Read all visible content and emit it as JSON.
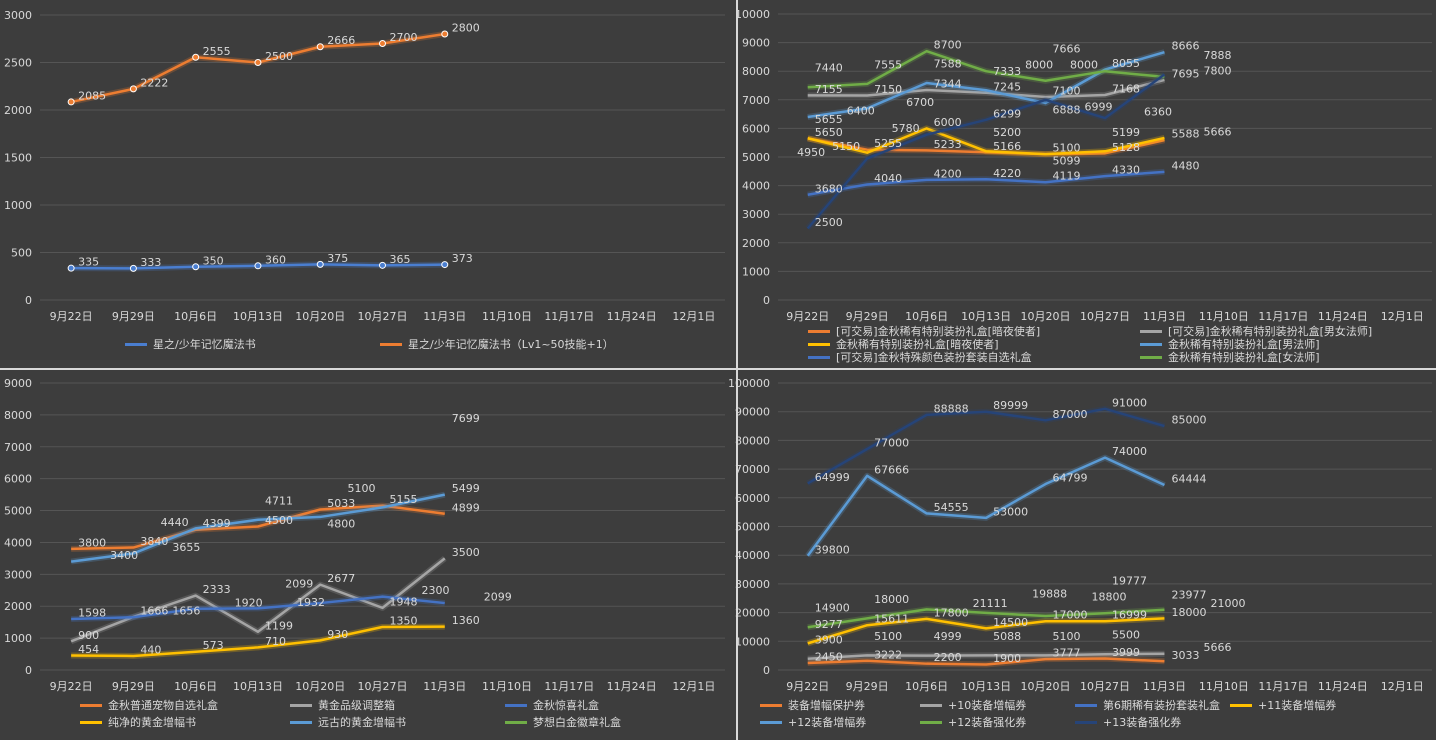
{
  "categories": [
    "9月22日",
    "9月29日",
    "10月6日",
    "10月13日",
    "10月20日",
    "10月27日",
    "11月3日",
    "11月10日",
    "11月17日",
    "11月24日",
    "12月1日"
  ],
  "chart_data": [
    {
      "type": "line",
      "title": "",
      "ylim": [
        0,
        3000
      ],
      "ystep": 500,
      "grid": true,
      "legend": "bottom",
      "markers": true,
      "series": [
        {
          "name": "星之/少年记忆魔法书",
          "color": "#4a7ed0",
          "values": [
            335,
            333,
            350,
            360,
            375,
            365,
            373
          ]
        },
        {
          "name": "星之/少年记忆魔法书（Lv1~50技能+1）",
          "color": "#ed7d31",
          "values": [
            2085,
            2222,
            2555,
            2500,
            2666,
            2700,
            2800
          ]
        }
      ]
    },
    {
      "type": "line",
      "title": "",
      "ylim": [
        0,
        10000
      ],
      "ystep": 1000,
      "grid": true,
      "legend": "bottom",
      "markers": false,
      "series": [
        {
          "name": "[可交易]金秋稀有特别装扮礼盒[暗夜使者]",
          "color": "#ed7d31",
          "values": [
            5650,
            5255,
            5233,
            5166,
            5100,
            5128,
            5588
          ]
        },
        {
          "name": "[可交易]金秋稀有特别装扮礼盒[男女法师]",
          "color": "#a5a5a5",
          "values": [
            7155,
            7150,
            7344,
            7245,
            7100,
            7168,
            7695
          ]
        },
        {
          "name": "金秋稀有特别装扮礼盒[暗夜使者]",
          "color": "#ffc000",
          "values": [
            5655,
            5150,
            6000,
            5200,
            5099,
            5199,
            5666
          ]
        },
        {
          "name": "金秋稀有特别装扮礼盒[男法师]",
          "color": "#5b9bd5",
          "values": [
            6400,
            6700,
            7588,
            7333,
            6888,
            8055,
            8666
          ]
        },
        {
          "name": "[可交易]金秋特殊颜色装扮套装自选礼盒",
          "color": "#4472c4",
          "values": [
            3680,
            4040,
            4200,
            4220,
            4119,
            4330,
            4480
          ]
        },
        {
          "name": "金秋稀有特别装扮礼盒[女法师]",
          "color": "#70ad47",
          "values": [
            7440,
            7555,
            8700,
            8000,
            7666,
            8000,
            7800
          ]
        },
        {
          "name": "",
          "color": "#264478",
          "values": [
            2500,
            4950,
            5780,
            6299,
            6999,
            6360,
            7888
          ]
        }
      ]
    },
    {
      "type": "line",
      "title": "",
      "ylim": [
        0,
        9000
      ],
      "ystep": 1000,
      "grid": true,
      "legend": "bottom",
      "markers": false,
      "series": [
        {
          "name": "金秋普通宠物自选礼盒",
          "color": "#ed7d31",
          "values": [
            3800,
            3840,
            4399,
            4500,
            5033,
            5155,
            4899
          ]
        },
        {
          "name": "黄金品级调整箱",
          "color": "#a5a5a5",
          "values": [
            900,
            1666,
            2333,
            1199,
            2677,
            1948,
            3500
          ]
        },
        {
          "name": "金秋惊喜礼盒",
          "color": "#4472c4",
          "values": [
            1598,
            1656,
            1920,
            1932,
            2099,
            2300,
            2099
          ]
        },
        {
          "name": "纯净的黄金增幅书",
          "color": "#ffc000",
          "values": [
            454,
            440,
            573,
            710,
            930,
            1350,
            1360
          ]
        },
        {
          "name": "远古的黄金增幅书",
          "color": "#5b9bd5",
          "values": [
            3400,
            3655,
            4440,
            4711,
            4800,
            5100,
            5499
          ]
        },
        {
          "name": "梦想白金徽章礼盒",
          "color": "#70ad47",
          "values": [
            null,
            null,
            null,
            null,
            null,
            null,
            7699
          ]
        }
      ]
    },
    {
      "type": "line",
      "title": "",
      "ylim": [
        0,
        100000
      ],
      "ystep": 10000,
      "grid": true,
      "legend": "bottom",
      "markers": false,
      "series": [
        {
          "name": "装备增幅保护券",
          "color": "#ed7d31",
          "values": [
            2450,
            3222,
            2200,
            1900,
            3777,
            3999,
            3033
          ]
        },
        {
          "name": "+10装备增幅券",
          "color": "#a5a5a5",
          "values": [
            3900,
            5100,
            4999,
            5088,
            5100,
            5500,
            5666
          ]
        },
        {
          "name": "第6期稀有装扮套装礼盒",
          "color": "#4472c4",
          "values": [
            null,
            null,
            null,
            null,
            null,
            null,
            23977
          ]
        },
        {
          "name": "+11装备增幅券",
          "color": "#ffc000",
          "values": [
            9277,
            15611,
            17800,
            14500,
            17000,
            16999,
            18000
          ]
        },
        {
          "name": "+12装备增幅券",
          "color": "#5b9bd5",
          "values": [
            39800,
            67666,
            54555,
            53000,
            64799,
            74000,
            64444
          ]
        },
        {
          "name": "+12装备强化券",
          "color": "#70ad47",
          "values": [
            14900,
            18000,
            21111,
            19888,
            18800,
            19777,
            21000
          ]
        },
        {
          "name": "+13装备强化券",
          "color": "#264478",
          "values": [
            64999,
            77000,
            88888,
            89999,
            87000,
            91000,
            85000
          ]
        }
      ]
    }
  ]
}
